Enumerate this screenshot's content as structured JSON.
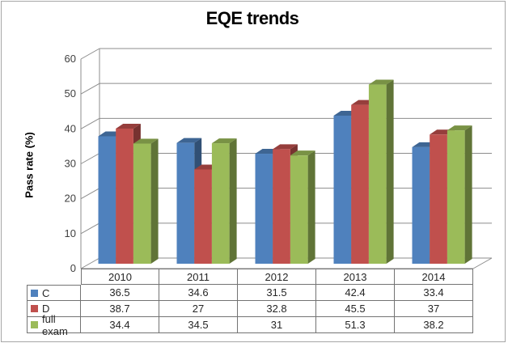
{
  "chart_data": {
    "type": "bar",
    "style": "3d-clustered-column",
    "title": "EQE trends",
    "ylabel": "Pass rate (%)",
    "xlabel": "",
    "categories": [
      "2010",
      "2011",
      "2012",
      "2013",
      "2014"
    ],
    "series": [
      {
        "name": "C",
        "color": "#4F81BD",
        "values": [
          36.5,
          34.6,
          31.5,
          42.4,
          33.4
        ]
      },
      {
        "name": "D",
        "color": "#C0504D",
        "values": [
          38.7,
          27,
          32.8,
          45.5,
          37
        ]
      },
      {
        "name": "full exam",
        "color": "#9BBB59",
        "values": [
          34.4,
          34.5,
          31,
          51.3,
          38.2
        ]
      }
    ],
    "yticks": [
      0,
      10,
      20,
      30,
      40,
      50,
      60
    ],
    "ylim": [
      0,
      60
    ],
    "grid": true,
    "legend_position": "table-left",
    "grid_color": "#8C8C8C",
    "border_color": "#A6A6A6"
  }
}
